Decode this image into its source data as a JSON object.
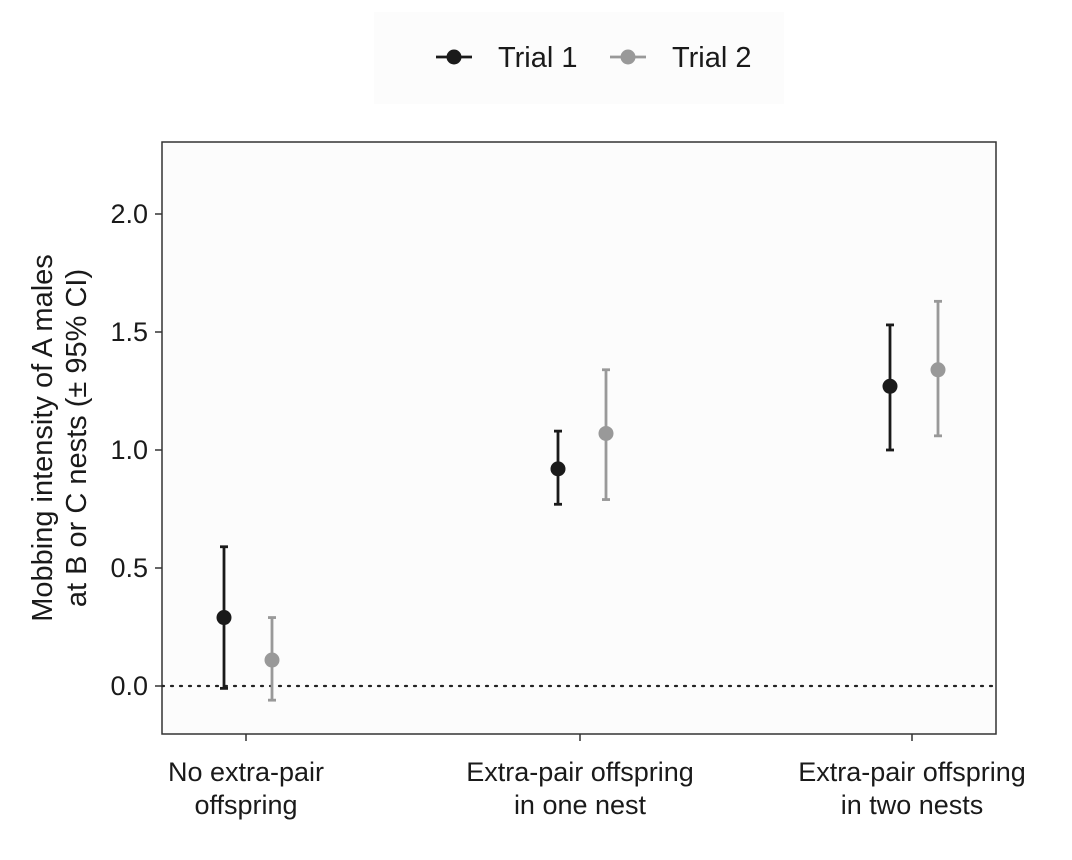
{
  "chart_data": {
    "type": "scatter",
    "subtype": "point-with-error-bars",
    "categories": [
      [
        "No extra-pair",
        "offspring"
      ],
      [
        "Extra-pair offspring",
        "in one nest"
      ],
      [
        "Extra-pair offspring",
        "in two nests"
      ]
    ],
    "ylabel": [
      "Mobbing intensity of A males",
      "at B or C nests (± 95% CI)"
    ],
    "xlabel": "",
    "ylim": [
      -0.2,
      2.3
    ],
    "yticks": [
      0.0,
      0.5,
      1.0,
      1.5,
      2.0
    ],
    "ytick_labels": [
      "0.0",
      "0.5",
      "1.0",
      "1.5",
      "2.0"
    ],
    "reference_line": {
      "y": 0.0,
      "style": "dotted"
    },
    "grid": false,
    "legend_position": "top",
    "series": [
      {
        "name": "Trial 1",
        "color": "#1a1a1a",
        "values": [
          0.29,
          0.92,
          1.27
        ],
        "ci_lower": [
          -0.01,
          0.77,
          1.0
        ],
        "ci_upper": [
          0.59,
          1.08,
          1.53
        ]
      },
      {
        "name": "Trial 2",
        "color": "#999999",
        "values": [
          0.11,
          1.07,
          1.34
        ],
        "ci_lower": [
          -0.06,
          0.79,
          1.06
        ],
        "ci_upper": [
          0.29,
          1.34,
          1.63
        ]
      }
    ]
  }
}
